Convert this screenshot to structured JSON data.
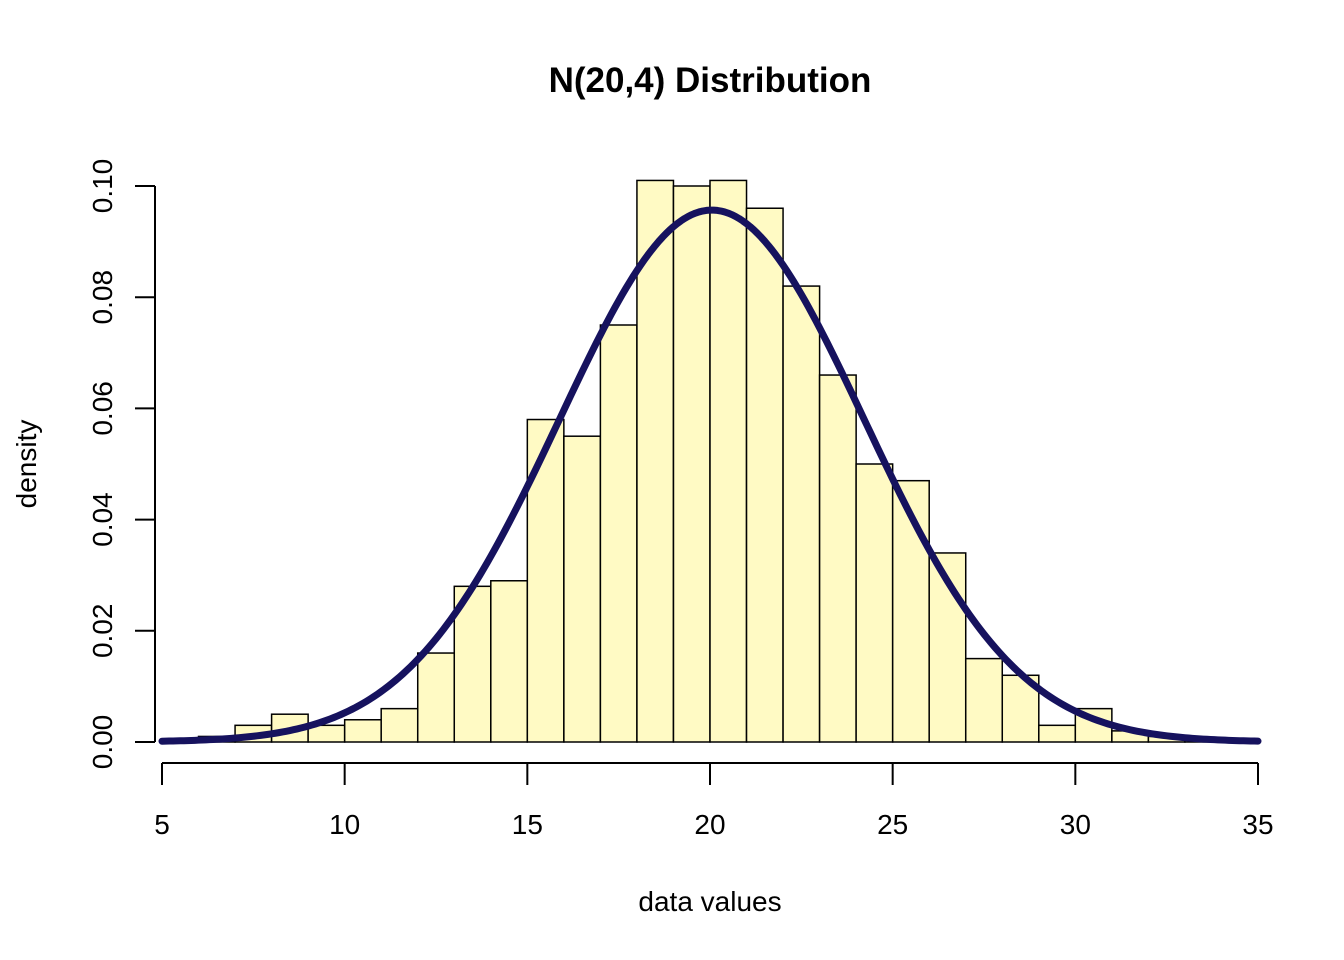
{
  "chart_data": {
    "type": "bar",
    "subtype": "histogram",
    "title": "N(20,4) Distribution",
    "xlabel": "data values",
    "ylabel": "density",
    "xlim": [
      5,
      35
    ],
    "ylim": [
      0,
      0.1
    ],
    "x_ticks": [
      5,
      10,
      15,
      20,
      25,
      30,
      35
    ],
    "x_tick_labels": [
      "5",
      "10",
      "15",
      "20",
      "25",
      "30",
      "35"
    ],
    "y_ticks": [
      0,
      0.02,
      0.04,
      0.06,
      0.08,
      0.1
    ],
    "y_tick_labels": [
      "0.00",
      "0.02",
      "0.04",
      "0.06",
      "0.08",
      "0.10"
    ],
    "grid": false,
    "bins": [
      {
        "x0": 6,
        "x1": 7,
        "value": 0.001
      },
      {
        "x0": 7,
        "x1": 8,
        "value": 0.003
      },
      {
        "x0": 8,
        "x1": 9,
        "value": 0.005
      },
      {
        "x0": 9,
        "x1": 10,
        "value": 0.003
      },
      {
        "x0": 10,
        "x1": 11,
        "value": 0.004
      },
      {
        "x0": 11,
        "x1": 12,
        "value": 0.006
      },
      {
        "x0": 12,
        "x1": 13,
        "value": 0.016
      },
      {
        "x0": 13,
        "x1": 14,
        "value": 0.028
      },
      {
        "x0": 14,
        "x1": 15,
        "value": 0.029
      },
      {
        "x0": 15,
        "x1": 16,
        "value": 0.058
      },
      {
        "x0": 16,
        "x1": 17,
        "value": 0.055
      },
      {
        "x0": 17,
        "x1": 18,
        "value": 0.075
      },
      {
        "x0": 18,
        "x1": 19,
        "value": 0.101
      },
      {
        "x0": 19,
        "x1": 20,
        "value": 0.1
      },
      {
        "x0": 20,
        "x1": 21,
        "value": 0.101
      },
      {
        "x0": 21,
        "x1": 22,
        "value": 0.096
      },
      {
        "x0": 22,
        "x1": 23,
        "value": 0.082
      },
      {
        "x0": 23,
        "x1": 24,
        "value": 0.066
      },
      {
        "x0": 24,
        "x1": 25,
        "value": 0.05
      },
      {
        "x0": 25,
        "x1": 26,
        "value": 0.047
      },
      {
        "x0": 26,
        "x1": 27,
        "value": 0.034
      },
      {
        "x0": 27,
        "x1": 28,
        "value": 0.015
      },
      {
        "x0": 28,
        "x1": 29,
        "value": 0.012
      },
      {
        "x0": 29,
        "x1": 30,
        "value": 0.003
      },
      {
        "x0": 30,
        "x1": 31,
        "value": 0.006
      },
      {
        "x0": 31,
        "x1": 32,
        "value": 0.002
      },
      {
        "x0": 32,
        "x1": 33,
        "value": 0.001
      },
      {
        "x0": 33,
        "x1": 34,
        "value": 0.0005
      }
    ],
    "curve": {
      "distribution": "normal",
      "mean": 20.05,
      "sd": 4.17,
      "x_range": [
        5,
        35
      ]
    },
    "colors": {
      "bar_fill": "#FFFAC4",
      "bar_stroke": "#000000",
      "curve": "#16125E"
    }
  }
}
